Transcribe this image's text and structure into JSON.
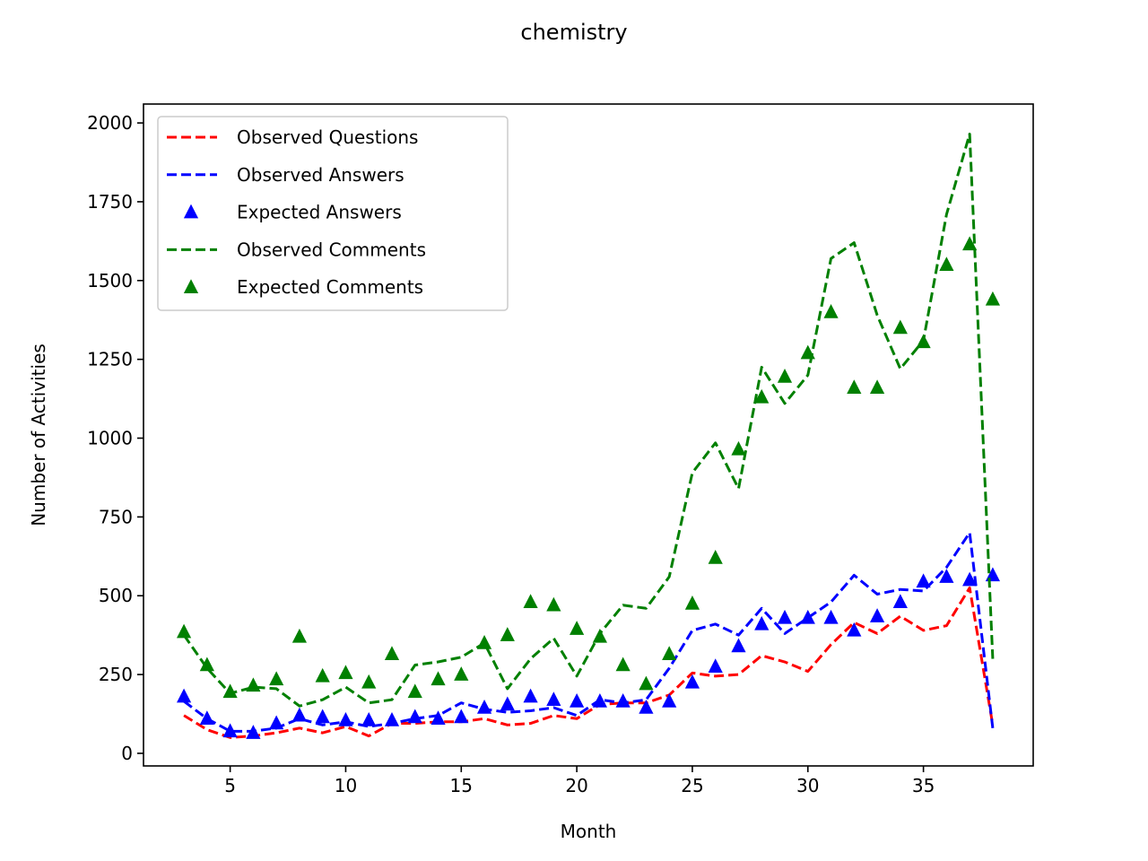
{
  "chart_data": {
    "type": "line",
    "title": "chemistry",
    "xlabel": "Month",
    "ylabel": "Number of Activities",
    "xlim": [
      1.25,
      39.75
    ],
    "ylim": [
      -40,
      2060
    ],
    "xticks": [
      5,
      10,
      15,
      20,
      25,
      30,
      35
    ],
    "yticks": [
      0,
      250,
      500,
      750,
      1000,
      1250,
      1500,
      1750,
      2000
    ],
    "legend_position": "upper-left",
    "grid": false,
    "x": [
      3,
      4,
      5,
      6,
      7,
      8,
      9,
      10,
      11,
      12,
      13,
      14,
      15,
      16,
      17,
      18,
      19,
      20,
      21,
      22,
      23,
      24,
      25,
      26,
      27,
      28,
      29,
      30,
      31,
      32,
      33,
      34,
      35,
      36,
      37,
      38
    ],
    "series": [
      {
        "name": "Observed Questions",
        "style": "dashed-line",
        "color": "#ff0000",
        "values": [
          120,
          75,
          50,
          55,
          65,
          80,
          65,
          85,
          55,
          95,
          95,
          100,
          100,
          110,
          90,
          95,
          120,
          110,
          155,
          160,
          160,
          185,
          255,
          245,
          250,
          310,
          290,
          260,
          345,
          415,
          380,
          435,
          390,
          405,
          525,
          90
        ]
      },
      {
        "name": "Observed Answers",
        "style": "dashed-line",
        "color": "#0000ff",
        "values": [
          165,
          110,
          70,
          70,
          80,
          110,
          90,
          100,
          85,
          95,
          110,
          120,
          160,
          140,
          130,
          135,
          145,
          120,
          170,
          160,
          170,
          270,
          390,
          410,
          375,
          460,
          380,
          430,
          480,
          565,
          505,
          520,
          515,
          590,
          700,
          80
        ]
      },
      {
        "name": "Expected Answers",
        "style": "triangle-marker",
        "color": "#0000ff",
        "values": [
          180,
          110,
          70,
          65,
          95,
          120,
          115,
          105,
          105,
          105,
          115,
          110,
          115,
          145,
          155,
          180,
          170,
          165,
          165,
          165,
          145,
          165,
          225,
          275,
          340,
          410,
          430,
          430,
          430,
          390,
          435,
          480,
          545,
          560,
          550,
          565
        ]
      },
      {
        "name": "Observed Comments",
        "style": "dashed-line",
        "color": "#008000",
        "values": [
          375,
          270,
          190,
          210,
          205,
          150,
          170,
          210,
          160,
          170,
          280,
          290,
          305,
          350,
          205,
          300,
          365,
          245,
          380,
          470,
          460,
          560,
          890,
          985,
          840,
          1225,
          1110,
          1200,
          1570,
          1620,
          1390,
          1220,
          1310,
          1710,
          1965,
          300
        ]
      },
      {
        "name": "Expected Comments",
        "style": "triangle-marker",
        "color": "#008000",
        "values": [
          385,
          280,
          195,
          215,
          235,
          370,
          245,
          255,
          225,
          315,
          195,
          235,
          250,
          350,
          375,
          480,
          470,
          395,
          370,
          280,
          220,
          315,
          475,
          620,
          965,
          1130,
          1195,
          1270,
          1400,
          1160,
          1160,
          1350,
          1305,
          1550,
          1615,
          1440
        ]
      }
    ]
  }
}
